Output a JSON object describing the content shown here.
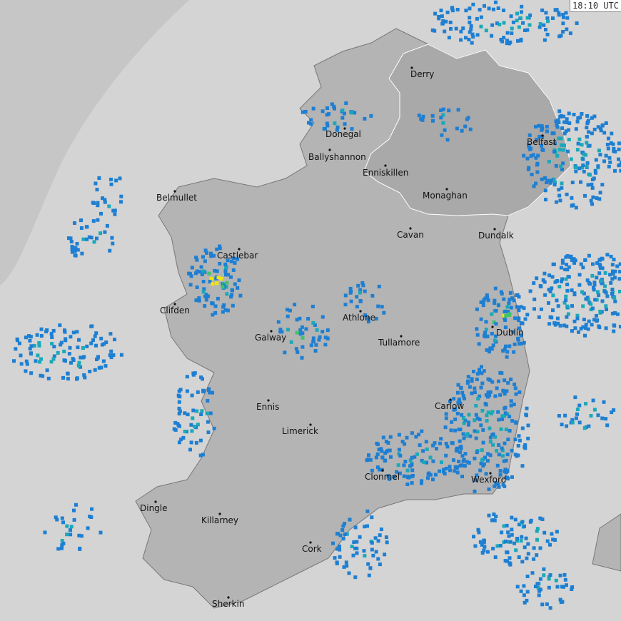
{
  "timestamp": "18:10 UTC",
  "colors": {
    "sea": "#d4d4d4",
    "out_of_range": "#c6c6c6",
    "land_republic": "#b4b4b4",
    "land_northern_ireland": "#a9a9a9",
    "borders": "#ffffff",
    "rain_light": "#1e7fd2",
    "rain_moderate": "#1aa9b8",
    "rain_heavy": "#3fc46a",
    "rain_very_heavy": "#f2e600"
  },
  "cities": [
    {
      "name": "Derry"
    },
    {
      "name": "Donegal"
    },
    {
      "name": "Ballyshannon"
    },
    {
      "name": "Enniskillen"
    },
    {
      "name": "Monaghan"
    },
    {
      "name": "Belfast"
    },
    {
      "name": "Belmullet"
    },
    {
      "name": "Castlebar"
    },
    {
      "name": "Cavan"
    },
    {
      "name": "Dundalk"
    },
    {
      "name": "Clifden"
    },
    {
      "name": "Athlone"
    },
    {
      "name": "Galway"
    },
    {
      "name": "Tullamore"
    },
    {
      "name": "Dublin"
    },
    {
      "name": "Ennis"
    },
    {
      "name": "Carlow"
    },
    {
      "name": "Limerick"
    },
    {
      "name": "Clonmel"
    },
    {
      "name": "Wexford"
    },
    {
      "name": "Dingle"
    },
    {
      "name": "Killarney"
    },
    {
      "name": "Cork"
    },
    {
      "name": "Sherkin"
    }
  ]
}
